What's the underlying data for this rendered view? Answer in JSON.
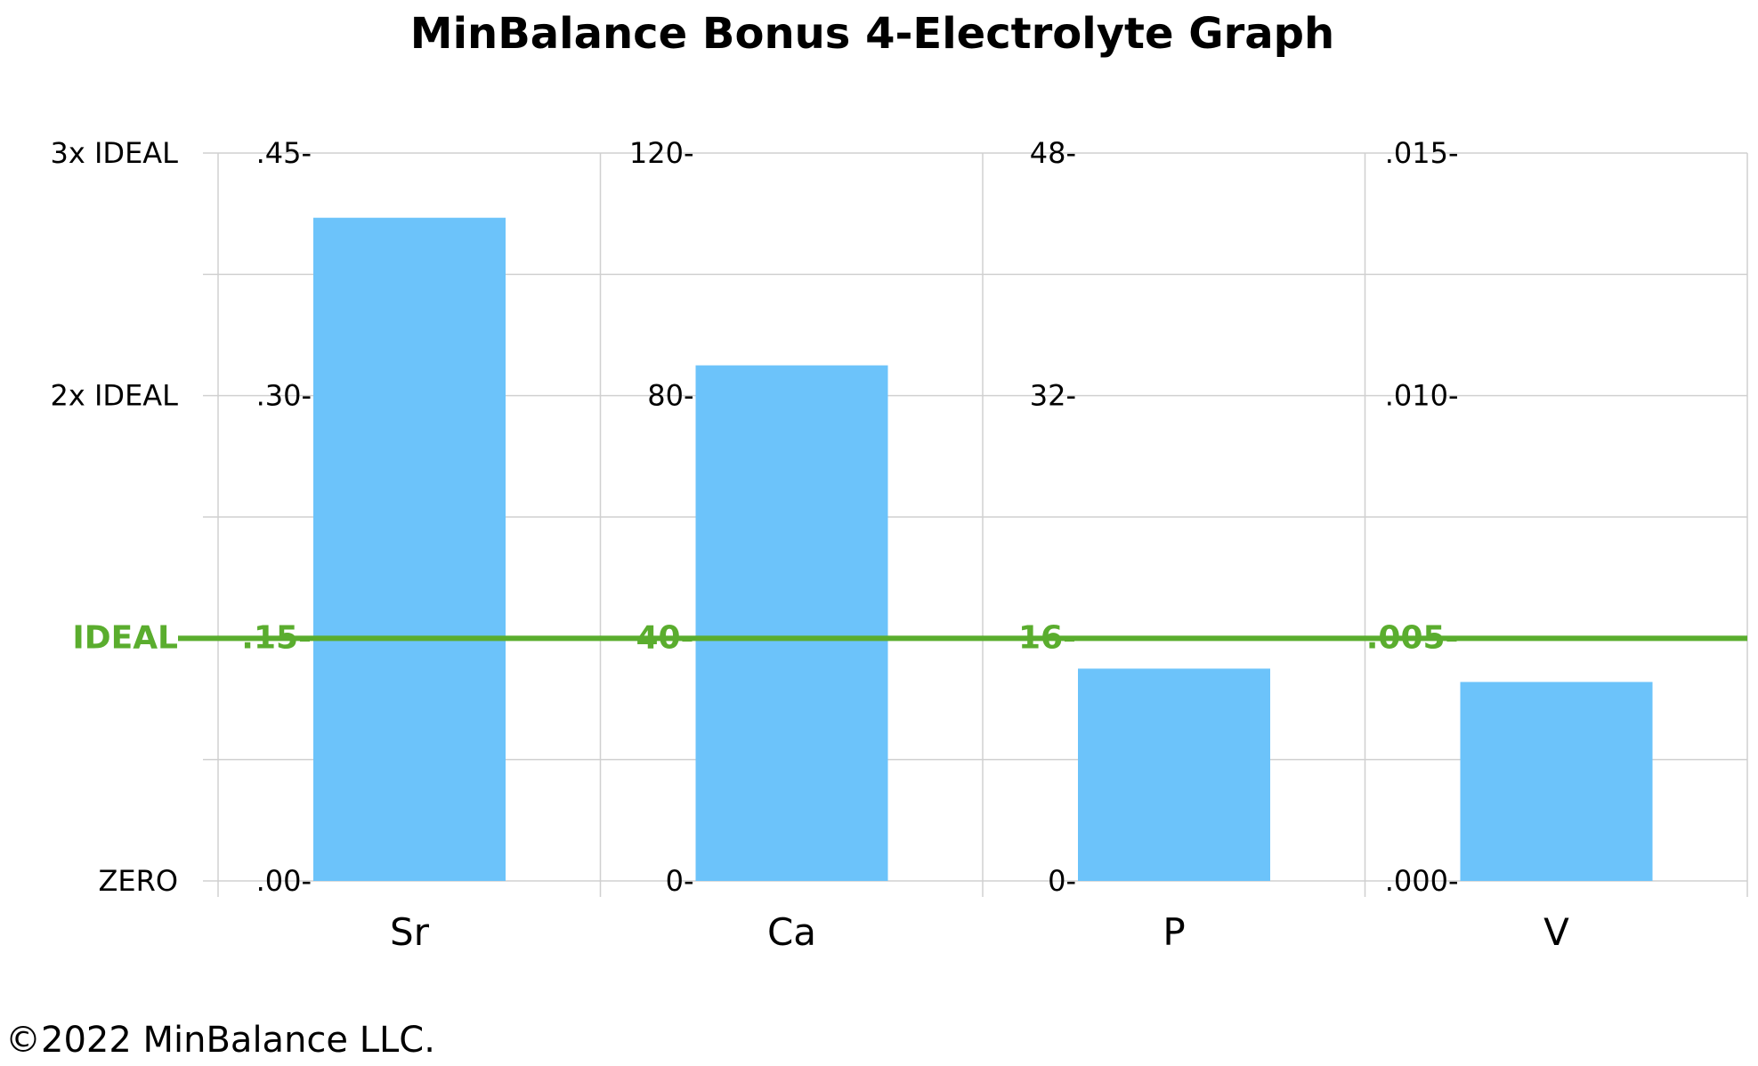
{
  "chart_data": {
    "type": "bar",
    "title": "MinBalance Bonus 4-Electrolyte Graph",
    "row_labels": [
      "ZERO",
      "IDEAL",
      "2x IDEAL",
      "3x IDEAL"
    ],
    "categories": [
      "Sr",
      "Ca",
      "P",
      "V"
    ],
    "panels": [
      {
        "category": "Sr",
        "ticks": [
          ".00-",
          ".15-",
          ".30-",
          ".45-"
        ],
        "ylim": [
          0,
          0.45
        ],
        "ideal": 0.15,
        "value": 0.41
      },
      {
        "category": "Ca",
        "ticks": [
          "0-",
          "40-",
          "80-",
          "120-"
        ],
        "ylim": [
          0,
          120
        ],
        "ideal": 40,
        "value": 85
      },
      {
        "category": "P",
        "ticks": [
          "0-",
          "16-",
          "32-",
          "48-"
        ],
        "ylim": [
          0,
          48
        ],
        "ideal": 16,
        "value": 14
      },
      {
        "category": "V",
        "ticks": [
          ".000-",
          ".005-",
          ".010-",
          ".015-"
        ],
        "ylim": [
          0,
          0.015
        ],
        "ideal": 0.005,
        "value": 0.0041
      }
    ],
    "grid": true,
    "colors": {
      "bar": "#6cc3fa",
      "ideal_line": "#5aad2e",
      "grid": "#d0d0d0"
    }
  },
  "footer": {
    "copyright": "©2022 MinBalance LLC."
  }
}
